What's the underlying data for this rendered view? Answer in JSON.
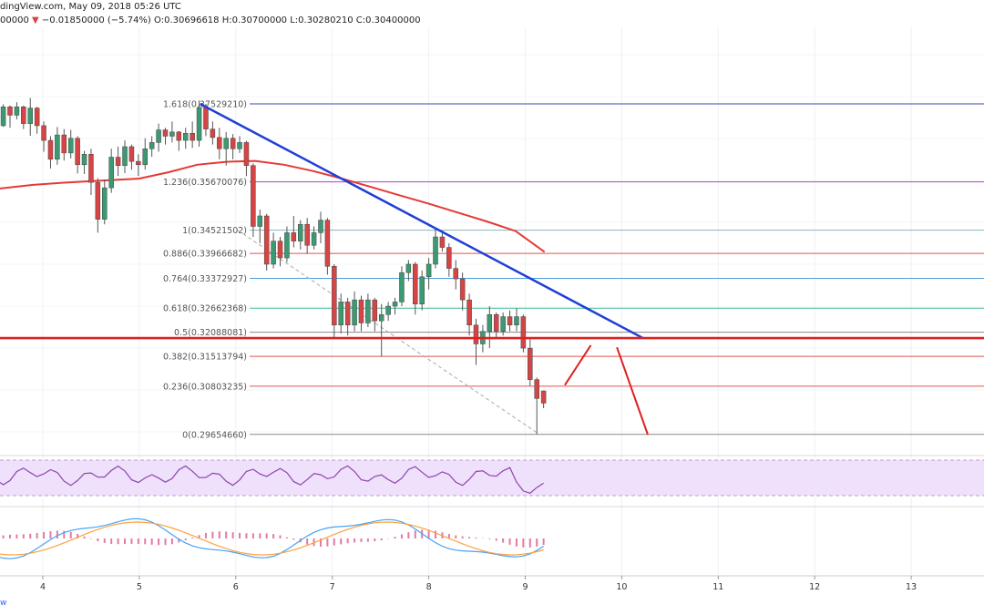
{
  "header": {
    "line1": "dingView.com, May 09, 2018 05:26 UTC",
    "line2_prefix": "00000",
    "change": "−0.01850000 (−5.74%)",
    "ohlc": "O:0.30696618 H:0.30700000 L:0.30280210 C:0.30400000"
  },
  "footer_text": "w",
  "colors": {
    "up": "#3c9a72",
    "down": "#d64545",
    "ma": "#e53935",
    "trend": "#1f3fd6",
    "support": "#e02020",
    "rsi_band": "#efe0fb",
    "macd_line": "#42a5f5",
    "signal_line": "#ffa040",
    "hist": "#e27aa6"
  },
  "chart_data": {
    "type": "candlestick",
    "y_range": [
      0.29,
      0.39
    ],
    "x_range": [
      3.5,
      13.7
    ],
    "x_ticks": [
      "4",
      "5",
      "6",
      "7",
      "8",
      "9",
      "10",
      "11",
      "12",
      "13"
    ],
    "x_tick_values": [
      4,
      5,
      6,
      7,
      8,
      9,
      10,
      11,
      12,
      13
    ],
    "fib_levels": [
      {
        "label": "1.618(0.37529210)",
        "value": 0.3752921,
        "color": "#3949ab"
      },
      {
        "label": "1.236(0.35670076)",
        "value": 0.35670076,
        "color": "#ab47bc"
      },
      {
        "label": "1(0.34521502)",
        "value": 0.34521502,
        "color": "#8ab4c0"
      },
      {
        "label": "0.886(0.33966682)",
        "value": 0.33966682,
        "color": "#e05555"
      },
      {
        "label": "0.764(0.33372927)",
        "value": 0.33372927,
        "color": "#4a9ee0"
      },
      {
        "label": "0.618(0.32662368)",
        "value": 0.32662368,
        "color": "#3cb890"
      },
      {
        "label": "0.5(0.32088081)",
        "value": 0.32088081,
        "color": "#888888"
      },
      {
        "label": "0.382(0.31513794)",
        "value": 0.31513794,
        "color": "#e05555"
      },
      {
        "label": "0.236(0.30803235)",
        "value": 0.30803235,
        "color": "#e05555"
      },
      {
        "label": "0(0.29654660)",
        "value": 0.2965466,
        "color": "#888888"
      }
    ],
    "support_level": 0.3195,
    "trend_line": [
      {
        "x": 5.63,
        "y": 0.3753
      },
      {
        "x": 10.22,
        "y": 0.3195
      }
    ],
    "fib_anchor_line": [
      {
        "x": 6.02,
        "y": 0.3452
      },
      {
        "x": 9.15,
        "y": 0.2965
      }
    ],
    "projection": [
      {
        "x": 9.41,
        "y": 0.3083
      },
      {
        "x": 9.68,
        "y": 0.3178
      },
      {
        "x": 9.95,
        "y": 0.3173
      },
      {
        "x": 10.27,
        "y": 0.2965
      }
    ],
    "moving_average": [
      {
        "x": 3.5,
        "y": 0.355
      },
      {
        "x": 3.9,
        "y": 0.356
      },
      {
        "x": 4.2,
        "y": 0.3565
      },
      {
        "x": 4.6,
        "y": 0.357
      },
      {
        "x": 5.0,
        "y": 0.3575
      },
      {
        "x": 5.3,
        "y": 0.359
      },
      {
        "x": 5.6,
        "y": 0.3608
      },
      {
        "x": 5.9,
        "y": 0.3615
      },
      {
        "x": 6.2,
        "y": 0.3617
      },
      {
        "x": 6.5,
        "y": 0.3608
      },
      {
        "x": 6.8,
        "y": 0.3593
      },
      {
        "x": 7.1,
        "y": 0.3575
      },
      {
        "x": 7.4,
        "y": 0.3555
      },
      {
        "x": 7.7,
        "y": 0.3535
      },
      {
        "x": 8.0,
        "y": 0.3515
      },
      {
        "x": 8.3,
        "y": 0.3494
      },
      {
        "x": 8.6,
        "y": 0.3473
      },
      {
        "x": 8.9,
        "y": 0.345
      },
      {
        "x": 9.2,
        "y": 0.34
      }
    ],
    "candles": [
      {
        "x": 3.52,
        "o": 0.3786,
        "h": 0.379,
        "l": 0.3672,
        "c": 0.3701
      },
      {
        "x": 3.59,
        "o": 0.3701,
        "h": 0.3752,
        "l": 0.3698,
        "c": 0.3746
      },
      {
        "x": 3.66,
        "o": 0.3746,
        "h": 0.3749,
        "l": 0.3696,
        "c": 0.3726
      },
      {
        "x": 3.73,
        "o": 0.3726,
        "h": 0.3757,
        "l": 0.3716,
        "c": 0.3746
      },
      {
        "x": 3.8,
        "o": 0.3746,
        "h": 0.3749,
        "l": 0.3693,
        "c": 0.3706
      },
      {
        "x": 3.87,
        "o": 0.3706,
        "h": 0.3767,
        "l": 0.3677,
        "c": 0.3743
      },
      {
        "x": 3.94,
        "o": 0.3743,
        "h": 0.3746,
        "l": 0.3682,
        "c": 0.3701
      },
      {
        "x": 4.01,
        "o": 0.3701,
        "h": 0.3711,
        "l": 0.3639,
        "c": 0.3666
      },
      {
        "x": 4.08,
        "o": 0.3666,
        "h": 0.3676,
        "l": 0.3599,
        "c": 0.3621
      },
      {
        "x": 4.15,
        "o": 0.3621,
        "h": 0.3698,
        "l": 0.3608,
        "c": 0.3679
      },
      {
        "x": 4.22,
        "o": 0.3679,
        "h": 0.3693,
        "l": 0.3618,
        "c": 0.3636
      },
      {
        "x": 4.29,
        "o": 0.3636,
        "h": 0.3691,
        "l": 0.3623,
        "c": 0.3671
      },
      {
        "x": 4.36,
        "o": 0.3671,
        "h": 0.3676,
        "l": 0.3587,
        "c": 0.3608
      },
      {
        "x": 4.43,
        "o": 0.3608,
        "h": 0.3641,
        "l": 0.3586,
        "c": 0.3633
      },
      {
        "x": 4.5,
        "o": 0.3633,
        "h": 0.3646,
        "l": 0.3536,
        "c": 0.3566
      },
      {
        "x": 4.57,
        "o": 0.3566,
        "h": 0.3576,
        "l": 0.3446,
        "c": 0.3478
      },
      {
        "x": 4.64,
        "o": 0.3478,
        "h": 0.3573,
        "l": 0.3466,
        "c": 0.3553
      },
      {
        "x": 4.71,
        "o": 0.3553,
        "h": 0.3646,
        "l": 0.3541,
        "c": 0.3626
      },
      {
        "x": 4.78,
        "o": 0.3626,
        "h": 0.3651,
        "l": 0.3581,
        "c": 0.3606
      },
      {
        "x": 4.85,
        "o": 0.3606,
        "h": 0.3666,
        "l": 0.3588,
        "c": 0.3651
      },
      {
        "x": 4.92,
        "o": 0.3651,
        "h": 0.3656,
        "l": 0.3596,
        "c": 0.3616
      },
      {
        "x": 4.99,
        "o": 0.3616,
        "h": 0.3633,
        "l": 0.3581,
        "c": 0.3608
      },
      {
        "x": 5.06,
        "o": 0.3608,
        "h": 0.3671,
        "l": 0.3596,
        "c": 0.3646
      },
      {
        "x": 5.13,
        "o": 0.3646,
        "h": 0.3676,
        "l": 0.3627,
        "c": 0.3661
      },
      {
        "x": 5.2,
        "o": 0.3661,
        "h": 0.3706,
        "l": 0.3639,
        "c": 0.3691
      },
      {
        "x": 5.27,
        "o": 0.3691,
        "h": 0.3696,
        "l": 0.3656,
        "c": 0.3676
      },
      {
        "x": 5.34,
        "o": 0.3676,
        "h": 0.3711,
        "l": 0.3661,
        "c": 0.3686
      },
      {
        "x": 5.41,
        "o": 0.3686,
        "h": 0.3688,
        "l": 0.3641,
        "c": 0.3666
      },
      {
        "x": 5.48,
        "o": 0.3666,
        "h": 0.3696,
        "l": 0.3646,
        "c": 0.3683
      },
      {
        "x": 5.55,
        "o": 0.3683,
        "h": 0.3711,
        "l": 0.3648,
        "c": 0.3666
      },
      {
        "x": 5.62,
        "o": 0.3666,
        "h": 0.3761,
        "l": 0.3651,
        "c": 0.3744
      },
      {
        "x": 5.69,
        "o": 0.3744,
        "h": 0.3753,
        "l": 0.3676,
        "c": 0.3693
      },
      {
        "x": 5.76,
        "o": 0.3693,
        "h": 0.3711,
        "l": 0.3656,
        "c": 0.3673
      },
      {
        "x": 5.83,
        "o": 0.3673,
        "h": 0.3696,
        "l": 0.3621,
        "c": 0.3646
      },
      {
        "x": 5.9,
        "o": 0.3646,
        "h": 0.3686,
        "l": 0.3606,
        "c": 0.3671
      },
      {
        "x": 5.97,
        "o": 0.3671,
        "h": 0.3681,
        "l": 0.3621,
        "c": 0.3646
      },
      {
        "x": 6.04,
        "o": 0.3646,
        "h": 0.3676,
        "l": 0.3636,
        "c": 0.3661
      },
      {
        "x": 6.11,
        "o": 0.3661,
        "h": 0.3665,
        "l": 0.3581,
        "c": 0.3606
      },
      {
        "x": 6.18,
        "o": 0.3606,
        "h": 0.3611,
        "l": 0.3436,
        "c": 0.3461
      },
      {
        "x": 6.25,
        "o": 0.3461,
        "h": 0.3501,
        "l": 0.3421,
        "c": 0.3486
      },
      {
        "x": 6.32,
        "o": 0.3486,
        "h": 0.3491,
        "l": 0.3356,
        "c": 0.3371
      },
      {
        "x": 6.39,
        "o": 0.3371,
        "h": 0.3446,
        "l": 0.3361,
        "c": 0.3426
      },
      {
        "x": 6.46,
        "o": 0.3426,
        "h": 0.3436,
        "l": 0.3366,
        "c": 0.3386
      },
      {
        "x": 6.53,
        "o": 0.3386,
        "h": 0.3461,
        "l": 0.3376,
        "c": 0.3446
      },
      {
        "x": 6.6,
        "o": 0.3446,
        "h": 0.3486,
        "l": 0.3411,
        "c": 0.3426
      },
      {
        "x": 6.67,
        "o": 0.3426,
        "h": 0.3476,
        "l": 0.3406,
        "c": 0.3466
      },
      {
        "x": 6.74,
        "o": 0.3466,
        "h": 0.3481,
        "l": 0.3396,
        "c": 0.3416
      },
      {
        "x": 6.81,
        "o": 0.3416,
        "h": 0.3461,
        "l": 0.3406,
        "c": 0.3446
      },
      {
        "x": 6.88,
        "o": 0.3446,
        "h": 0.3496,
        "l": 0.3421,
        "c": 0.3476
      },
      {
        "x": 6.95,
        "o": 0.3476,
        "h": 0.3481,
        "l": 0.3346,
        "c": 0.3366
      },
      {
        "x": 7.02,
        "o": 0.3366,
        "h": 0.3371,
        "l": 0.3196,
        "c": 0.3226
      },
      {
        "x": 7.09,
        "o": 0.3226,
        "h": 0.3301,
        "l": 0.3206,
        "c": 0.3281
      },
      {
        "x": 7.16,
        "o": 0.3281,
        "h": 0.3291,
        "l": 0.3201,
        "c": 0.3226
      },
      {
        "x": 7.23,
        "o": 0.3226,
        "h": 0.3306,
        "l": 0.3211,
        "c": 0.3286
      },
      {
        "x": 7.3,
        "o": 0.3286,
        "h": 0.3296,
        "l": 0.3211,
        "c": 0.3231
      },
      {
        "x": 7.37,
        "o": 0.3231,
        "h": 0.3301,
        "l": 0.3221,
        "c": 0.3286
      },
      {
        "x": 7.44,
        "o": 0.3286,
        "h": 0.3291,
        "l": 0.3211,
        "c": 0.3236
      },
      {
        "x": 7.51,
        "o": 0.3236,
        "h": 0.3276,
        "l": 0.3151,
        "c": 0.3251
      },
      {
        "x": 7.58,
        "o": 0.3251,
        "h": 0.3281,
        "l": 0.3236,
        "c": 0.3271
      },
      {
        "x": 7.65,
        "o": 0.3271,
        "h": 0.3291,
        "l": 0.3251,
        "c": 0.3281
      },
      {
        "x": 7.72,
        "o": 0.3281,
        "h": 0.3366,
        "l": 0.3271,
        "c": 0.3351
      },
      {
        "x": 7.79,
        "o": 0.3351,
        "h": 0.3381,
        "l": 0.3331,
        "c": 0.3371
      },
      {
        "x": 7.86,
        "o": 0.3371,
        "h": 0.3376,
        "l": 0.3251,
        "c": 0.3276
      },
      {
        "x": 7.93,
        "o": 0.3276,
        "h": 0.3356,
        "l": 0.3261,
        "c": 0.3341
      },
      {
        "x": 8.0,
        "o": 0.3341,
        "h": 0.3386,
        "l": 0.3311,
        "c": 0.3371
      },
      {
        "x": 8.07,
        "o": 0.3371,
        "h": 0.3456,
        "l": 0.3361,
        "c": 0.3436
      },
      {
        "x": 8.14,
        "o": 0.3436,
        "h": 0.3451,
        "l": 0.3401,
        "c": 0.3411
      },
      {
        "x": 8.21,
        "o": 0.3411,
        "h": 0.3421,
        "l": 0.3341,
        "c": 0.3361
      },
      {
        "x": 8.28,
        "o": 0.3361,
        "h": 0.3381,
        "l": 0.3311,
        "c": 0.3336
      },
      {
        "x": 8.35,
        "o": 0.3336,
        "h": 0.3351,
        "l": 0.3261,
        "c": 0.3286
      },
      {
        "x": 8.42,
        "o": 0.3286,
        "h": 0.3301,
        "l": 0.3201,
        "c": 0.3226
      },
      {
        "x": 8.49,
        "o": 0.3226,
        "h": 0.3241,
        "l": 0.3131,
        "c": 0.3181
      },
      {
        "x": 8.56,
        "o": 0.3181,
        "h": 0.3226,
        "l": 0.3161,
        "c": 0.3211
      },
      {
        "x": 8.63,
        "o": 0.3211,
        "h": 0.3271,
        "l": 0.3171,
        "c": 0.3251
      },
      {
        "x": 8.7,
        "o": 0.3251,
        "h": 0.3256,
        "l": 0.3196,
        "c": 0.3211
      },
      {
        "x": 8.77,
        "o": 0.3211,
        "h": 0.3256,
        "l": 0.3201,
        "c": 0.3246
      },
      {
        "x": 8.84,
        "o": 0.3246,
        "h": 0.3261,
        "l": 0.3211,
        "c": 0.3226
      },
      {
        "x": 8.91,
        "o": 0.3226,
        "h": 0.3266,
        "l": 0.3211,
        "c": 0.3246
      },
      {
        "x": 8.98,
        "o": 0.3246,
        "h": 0.3251,
        "l": 0.3161,
        "c": 0.3171
      },
      {
        "x": 9.05,
        "o": 0.3171,
        "h": 0.3196,
        "l": 0.3081,
        "c": 0.3096
      },
      {
        "x": 9.12,
        "o": 0.3096,
        "h": 0.3101,
        "l": 0.2966,
        "c": 0.3051
      },
      {
        "x": 9.19,
        "o": 0.3069,
        "h": 0.307,
        "l": 0.3028,
        "c": 0.304
      }
    ]
  }
}
